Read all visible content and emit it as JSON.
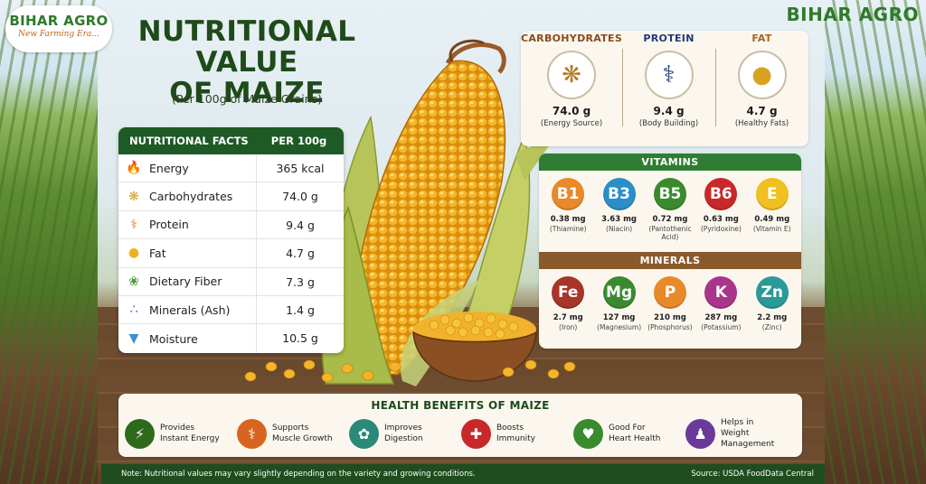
{
  "brand": {
    "logo_name": "BIHAR AGRO",
    "logo_tagline": "New Farming Era...",
    "right_name": "BIHAR AGRO"
  },
  "title": {
    "line1": "NUTRITIONAL VALUE",
    "line2": "OF MAIZE",
    "subtitle": "(Per 100g of Maize Grains)"
  },
  "nutrition_table": {
    "header_left": "NUTRITIONAL FACTS",
    "header_right": "PER 100g",
    "rows": [
      {
        "icon": "flame-icon",
        "label": "Energy",
        "value": "365 kcal",
        "color": "#e8742a"
      },
      {
        "icon": "wheat-icon",
        "label": "Carbohydrates",
        "value": "74.0 g",
        "color": "#e0a21e"
      },
      {
        "icon": "muscle-icon",
        "label": "Protein",
        "value": "9.4 g",
        "color": "#e8742a"
      },
      {
        "icon": "drop-icon",
        "label": "Fat",
        "value": "4.7 g",
        "color": "#e8b41a"
      },
      {
        "icon": "leaf-icon",
        "label": "Dietary Fiber",
        "value": "7.3 g",
        "color": "#4a9a3a"
      },
      {
        "icon": "molecule-icon",
        "label": "Minerals (Ash)",
        "value": "1.4 g",
        "color": "#3a6fc0"
      },
      {
        "icon": "water-drop-icon",
        "label": "Moisture",
        "value": "10.5 g",
        "color": "#3a8fd0"
      }
    ]
  },
  "macros": [
    {
      "title": "CARBOHYDRATES",
      "value": "74.0 g",
      "sub": "(Energy Source)",
      "icon": "wheat-icon",
      "color": "#8b4a1f"
    },
    {
      "title": "PROTEIN",
      "value": "9.4 g",
      "sub": "(Body Building)",
      "icon": "muscle-icon",
      "color": "#1f3a7a"
    },
    {
      "title": "FAT",
      "value": "4.7 g",
      "sub": "(Healthy Fats)",
      "icon": "oil-drop-icon",
      "color": "#a8661f"
    }
  ],
  "vitamins": {
    "title": "VITAMINS",
    "items": [
      {
        "symbol": "B1",
        "value": "0.38 mg",
        "name": "(Thiamine)",
        "color": "#e8892a"
      },
      {
        "symbol": "B3",
        "value": "3.63 mg",
        "name": "(Niacin)",
        "color": "#2a8fc8"
      },
      {
        "symbol": "B5",
        "value": "0.72 mg",
        "name": "(Pantothenic Acid)",
        "color": "#3a8a2e"
      },
      {
        "symbol": "B6",
        "value": "0.63 mg",
        "name": "(Pyridoxine)",
        "color": "#c8282a"
      },
      {
        "symbol": "E",
        "value": "0.49 mg",
        "name": "(Vitamin E)",
        "color": "#f0c020"
      }
    ]
  },
  "minerals": {
    "title": "MINERALS",
    "items": [
      {
        "symbol": "Fe",
        "value": "2.7 mg",
        "name": "(Iron)",
        "color": "#a8352a"
      },
      {
        "symbol": "Mg",
        "value": "127 mg",
        "name": "(Magnesium)",
        "color": "#3a8a2e"
      },
      {
        "symbol": "P",
        "value": "210 mg",
        "name": "(Phosphorus)",
        "color": "#e8892a"
      },
      {
        "symbol": "K",
        "value": "287 mg",
        "name": "(Potassium)",
        "color": "#a8358a"
      },
      {
        "symbol": "Zn",
        "value": "2.2 mg",
        "name": "(Zinc)",
        "color": "#2a9a98"
      }
    ]
  },
  "benefits": {
    "title": "HEALTH BENEFITS OF MAIZE",
    "items": [
      {
        "icon": "lightning-icon",
        "line1": "Provides",
        "line2": "Instant Energy",
        "color": "#2e6a1e"
      },
      {
        "icon": "muscle-icon",
        "line1": "Supports",
        "line2": "Muscle Growth",
        "color": "#d8651f"
      },
      {
        "icon": "stomach-icon",
        "line1": "Improves",
        "line2": "Digestion",
        "color": "#2a8a7a"
      },
      {
        "icon": "shield-plus-icon",
        "line1": "Boosts",
        "line2": "Immunity",
        "color": "#c8282a"
      },
      {
        "icon": "heart-icon",
        "line1": "Good For",
        "line2": "Heart Health",
        "color": "#3a8a2e"
      },
      {
        "icon": "person-icon",
        "line1": "Helps in",
        "line2": "Weight Management",
        "color": "#6a3a9a"
      }
    ]
  },
  "footer": {
    "note": "Note: Nutritional values may vary slightly depending on the variety and growing conditions.",
    "source": "Source: USDA FoodData Central"
  }
}
